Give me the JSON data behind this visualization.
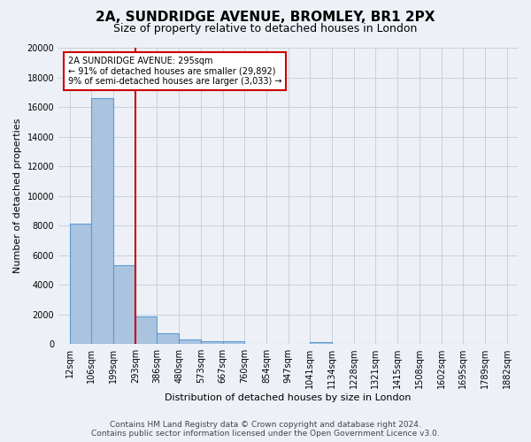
{
  "title": "2A, SUNDRIDGE AVENUE, BROMLEY, BR1 2PX",
  "subtitle": "Size of property relative to detached houses in London",
  "xlabel": "Distribution of detached houses by size in London",
  "ylabel": "Number of detached properties",
  "footer_line1": "Contains HM Land Registry data © Crown copyright and database right 2024.",
  "footer_line2": "Contains public sector information licensed under the Open Government Licence v3.0.",
  "bar_edges": [
    12,
    106,
    199,
    293,
    386,
    480,
    573,
    667,
    760,
    854,
    947,
    1041,
    1134,
    1228,
    1321,
    1415,
    1508,
    1602,
    1695,
    1789,
    1882
  ],
  "bar_heights": [
    8100,
    16600,
    5300,
    1850,
    750,
    280,
    170,
    170,
    0,
    0,
    0,
    150,
    0,
    0,
    0,
    0,
    0,
    0,
    0,
    0
  ],
  "bar_color": "#aac4e0",
  "bar_edge_color": "#5b9bd5",
  "bar_linewidth": 0.8,
  "property_size": 295,
  "red_line_color": "#cc0000",
  "annotation_title": "2A SUNDRIDGE AVENUE: 295sqm",
  "annotation_line1": "← 91% of detached houses are smaller (29,892)",
  "annotation_line2": "9% of semi-detached houses are larger (3,033) →",
  "annotation_box_color": "#ffffff",
  "annotation_box_edge": "#cc0000",
  "ylim": [
    0,
    20000
  ],
  "yticks": [
    0,
    2000,
    4000,
    6000,
    8000,
    10000,
    12000,
    14000,
    16000,
    18000,
    20000
  ],
  "grid_color": "#c8d0dc",
  "background_color": "#edf1f7",
  "title_fontsize": 11,
  "subtitle_fontsize": 9,
  "axis_label_fontsize": 8,
  "tick_fontsize": 7,
  "footer_fontsize": 6.5
}
